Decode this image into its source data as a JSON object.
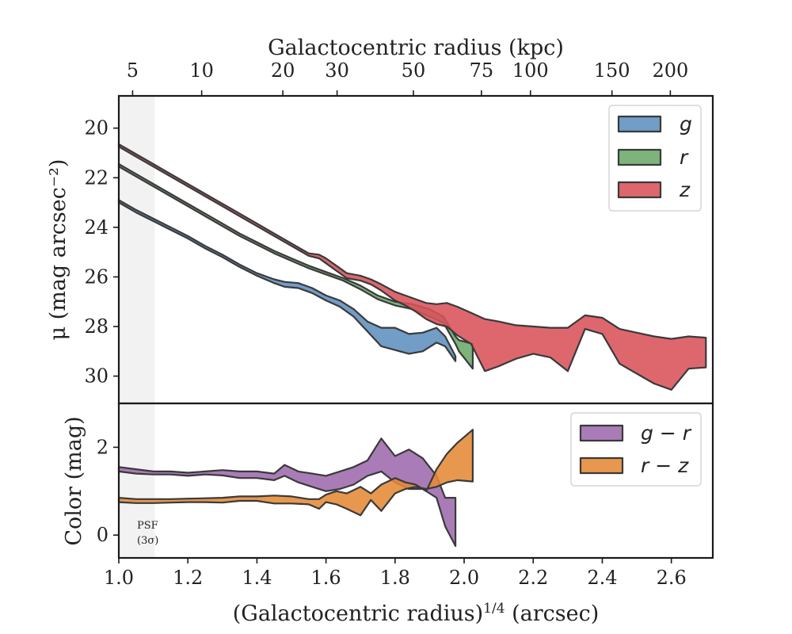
{
  "chart_data": [
    {
      "type": "area",
      "panel": "top",
      "xlabel": "",
      "ylabel": "μ (mag arcsec⁻²)",
      "xlim": [
        1.0,
        2.72
      ],
      "ylim": [
        31.1,
        18.7
      ],
      "y_inverted": true,
      "y_ticks": [
        "20",
        "22",
        "24",
        "26",
        "28",
        "30"
      ],
      "top_axis": {
        "label": "Galactocentric radius (kpc)",
        "ticks": [
          {
            "label": "5",
            "x": 1.04
          },
          {
            "label": "10",
            "x": 1.24
          },
          {
            "label": "20",
            "x": 1.475
          },
          {
            "label": "30",
            "x": 1.632
          },
          {
            "label": "50",
            "x": 1.853
          },
          {
            "label": "75",
            "x": 2.05
          },
          {
            "label": "100",
            "x": 2.192
          },
          {
            "label": "150",
            "x": 2.428
          },
          {
            "label": "200",
            "x": 2.597
          }
        ]
      },
      "shaded_region": {
        "x": [
          1.0,
          1.104
        ],
        "color": "#f2f2f2"
      },
      "legend": {
        "placement": "upper right",
        "entries": [
          "g",
          "r",
          "z"
        ]
      },
      "series": [
        {
          "name": "g",
          "color": "#5d8fbf",
          "x": [
            1.0,
            1.05,
            1.1,
            1.15,
            1.2,
            1.25,
            1.3,
            1.35,
            1.4,
            1.45,
            1.48,
            1.52,
            1.56,
            1.6,
            1.64,
            1.68,
            1.72,
            1.76,
            1.8,
            1.84,
            1.88,
            1.92,
            1.945,
            1.975
          ],
          "y_upper": [
            22.9,
            23.3,
            23.65,
            24.0,
            24.35,
            24.75,
            25.1,
            25.5,
            25.85,
            26.1,
            26.2,
            26.25,
            26.45,
            26.75,
            26.95,
            27.3,
            27.8,
            28.05,
            28.05,
            28.3,
            28.25,
            28.05,
            28.4,
            29.2
          ],
          "y_lower": [
            23.0,
            23.4,
            23.75,
            24.1,
            24.45,
            24.85,
            25.2,
            25.6,
            25.95,
            26.25,
            26.4,
            26.45,
            26.65,
            26.95,
            27.2,
            27.6,
            28.2,
            28.8,
            28.95,
            29.1,
            29.0,
            28.65,
            28.8,
            29.4
          ]
        },
        {
          "name": "r",
          "color": "#6aaa6a",
          "x": [
            1.0,
            1.05,
            1.1,
            1.15,
            1.2,
            1.25,
            1.3,
            1.35,
            1.4,
            1.45,
            1.5,
            1.55,
            1.6,
            1.65,
            1.7,
            1.75,
            1.8,
            1.85,
            1.9,
            1.94,
            1.975,
            1.985,
            2.025
          ],
          "y_upper": [
            21.45,
            21.85,
            22.25,
            22.65,
            23.05,
            23.45,
            23.85,
            24.25,
            24.6,
            24.95,
            25.25,
            25.55,
            25.8,
            26.05,
            26.35,
            26.75,
            27.0,
            27.1,
            27.3,
            27.6,
            28.4,
            28.55,
            28.7
          ],
          "y_lower": [
            21.55,
            21.95,
            22.35,
            22.75,
            23.15,
            23.55,
            23.95,
            24.35,
            24.7,
            25.05,
            25.35,
            25.65,
            25.9,
            26.15,
            26.5,
            26.9,
            27.15,
            27.3,
            27.6,
            27.85,
            28.7,
            29.0,
            29.7
          ]
        },
        {
          "name": "z",
          "color": "#d9525a",
          "x": [
            1.0,
            1.05,
            1.1,
            1.15,
            1.2,
            1.25,
            1.3,
            1.35,
            1.4,
            1.45,
            1.5,
            1.55,
            1.58,
            1.6,
            1.63,
            1.66,
            1.7,
            1.73,
            1.76,
            1.8,
            1.83,
            1.86,
            1.89,
            1.92,
            1.95,
            1.98,
            2.02,
            2.06,
            2.1,
            2.15,
            2.2,
            2.25,
            2.3,
            2.35,
            2.4,
            2.45,
            2.5,
            2.55,
            2.6,
            2.65,
            2.7
          ],
          "y_upper": [
            20.65,
            21.05,
            21.45,
            21.85,
            22.25,
            22.65,
            23.05,
            23.45,
            23.85,
            24.25,
            24.65,
            25.05,
            25.1,
            25.25,
            25.55,
            25.85,
            25.95,
            26.1,
            26.3,
            26.6,
            26.75,
            26.9,
            27.05,
            27.1,
            27.05,
            27.2,
            27.45,
            27.7,
            27.8,
            27.95,
            28.0,
            28.05,
            28.05,
            27.55,
            27.65,
            28.1,
            28.25,
            28.4,
            28.5,
            28.4,
            28.45
          ],
          "y_lower": [
            20.75,
            21.15,
            21.55,
            21.95,
            22.35,
            22.75,
            23.15,
            23.55,
            23.95,
            24.35,
            24.75,
            25.15,
            25.25,
            25.45,
            25.75,
            26.05,
            26.15,
            26.3,
            26.55,
            26.95,
            27.15,
            27.4,
            27.7,
            27.9,
            28.0,
            28.35,
            28.7,
            29.8,
            29.6,
            29.3,
            29.1,
            29.25,
            29.8,
            28.1,
            28.3,
            29.5,
            29.9,
            30.3,
            30.55,
            29.7,
            29.65
          ]
        }
      ]
    },
    {
      "type": "area",
      "panel": "bottom",
      "xlabel": "(Galactocentric radius)^1/4 (arcsec)",
      "ylabel": "Color (mag)",
      "xlim": [
        1.0,
        2.72
      ],
      "ylim": [
        -0.52,
        3.0
      ],
      "x_ticks": [
        "1.0",
        "1.2",
        "1.4",
        "1.6",
        "1.8",
        "2.0",
        "2.2",
        "2.4",
        "2.6"
      ],
      "y_ticks": [
        "0",
        "2"
      ],
      "annotation": [
        "PSF",
        "(3σ)"
      ],
      "legend": {
        "placement": "upper right",
        "entries": [
          "g − r",
          "r − z"
        ]
      },
      "series": [
        {
          "name": "g − r",
          "color": "#9e6aad",
          "x": [
            1.0,
            1.05,
            1.1,
            1.15,
            1.2,
            1.25,
            1.3,
            1.35,
            1.4,
            1.45,
            1.48,
            1.52,
            1.56,
            1.6,
            1.64,
            1.68,
            1.72,
            1.76,
            1.8,
            1.84,
            1.88,
            1.92,
            1.945,
            1.975
          ],
          "y_upper": [
            1.55,
            1.5,
            1.45,
            1.45,
            1.42,
            1.45,
            1.48,
            1.45,
            1.45,
            1.4,
            1.6,
            1.45,
            1.4,
            1.35,
            1.45,
            1.55,
            1.7,
            2.2,
            1.8,
            1.95,
            1.75,
            1.35,
            0.85,
            0.85
          ],
          "y_lower": [
            1.45,
            1.4,
            1.38,
            1.38,
            1.35,
            1.38,
            1.36,
            1.3,
            1.3,
            1.25,
            1.35,
            1.2,
            1.1,
            1.0,
            1.05,
            1.15,
            1.35,
            1.45,
            1.2,
            1.05,
            1.05,
            0.85,
            0.2,
            -0.25
          ]
        },
        {
          "name": "r − z",
          "color": "#e58a35",
          "x": [
            1.0,
            1.05,
            1.1,
            1.15,
            1.2,
            1.25,
            1.3,
            1.35,
            1.4,
            1.45,
            1.5,
            1.55,
            1.58,
            1.6,
            1.63,
            1.66,
            1.7,
            1.73,
            1.76,
            1.8,
            1.83,
            1.86,
            1.89,
            1.92,
            1.95,
            1.98,
            2.025
          ],
          "y_upper": [
            0.85,
            0.82,
            0.82,
            0.82,
            0.83,
            0.84,
            0.85,
            0.88,
            0.88,
            0.9,
            0.88,
            0.82,
            0.82,
            0.92,
            1.0,
            0.95,
            1.1,
            0.95,
            1.15,
            1.3,
            1.2,
            1.15,
            1.0,
            1.5,
            1.85,
            2.1,
            2.4
          ],
          "y_lower": [
            0.75,
            0.73,
            0.73,
            0.74,
            0.75,
            0.75,
            0.74,
            0.78,
            0.78,
            0.72,
            0.72,
            0.7,
            0.6,
            0.75,
            0.7,
            0.6,
            0.45,
            0.8,
            0.55,
            0.95,
            1.05,
            1.1,
            1.05,
            1.1,
            1.2,
            1.25,
            1.22
          ]
        }
      ]
    }
  ]
}
